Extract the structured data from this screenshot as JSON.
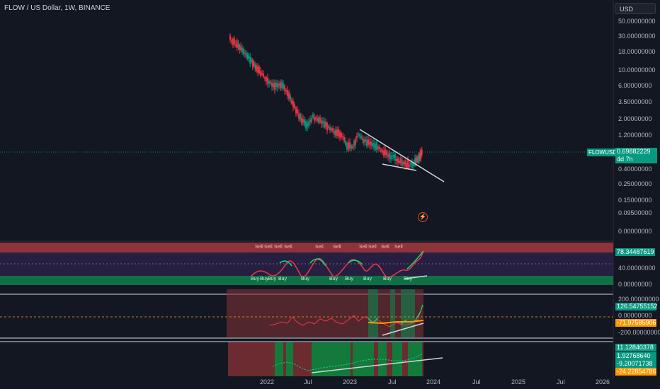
{
  "header": {
    "title": "FLOW / US Dollar, 1W, BINANCE",
    "currency": "USD"
  },
  "price_axis": {
    "labels": [
      "50.00000000",
      "30.00000000",
      "18.00000000",
      "10.00000000",
      "6.00000000",
      "3.50000000",
      "2.00000000",
      "1.20000000",
      "0.40000000",
      "0.25000000",
      "0.15000000",
      "0.09500000",
      "0.00000000"
    ]
  },
  "last_price": {
    "symbol": "FLOWUSD",
    "price": "0.69882229",
    "countdown": "4d 7h"
  },
  "time_axis": [
    "2022",
    "Jul",
    "2023",
    "Jul",
    "2024",
    "Jul",
    "2025",
    "Jul",
    "2026"
  ],
  "ind1": {
    "value_label": "78.34487619",
    "axis": [
      "40.00000000",
      "0.00000000"
    ],
    "sell_label": "Sell",
    "buy_label": "Buy"
  },
  "ind2": {
    "value1": "126.54755152",
    "axis_top": "200.00000000",
    "axis_mid": "0.00000000",
    "value2": "-71.97585906",
    "axis_bot": "-200.00000000"
  },
  "ind3": {
    "values": [
      "11.12840378",
      "1.92768640",
      "-9.20071738",
      "-24.22854786"
    ]
  },
  "colors": {
    "bg": "#131722",
    "up": "#089981",
    "down": "#f23645",
    "accent_green": "#00e676",
    "orange": "#ff9800"
  }
}
